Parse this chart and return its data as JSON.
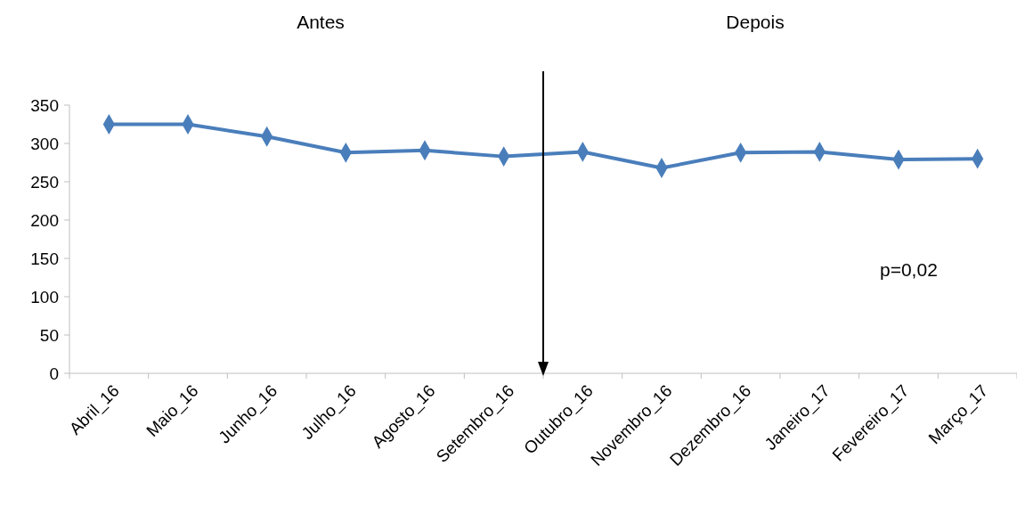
{
  "chart_data": {
    "type": "line",
    "categories": [
      "Abril_16",
      "Maio_16",
      "Junho_16",
      "Julho_16",
      "Agosto_16",
      "Setembro_16",
      "Outubro_16",
      "Novembro_16",
      "Dezembro_16",
      "Janeiro_17",
      "Fevereiro_17",
      "Março_17"
    ],
    "series": [
      {
        "color": "#4a7ebb",
        "values": [
          325,
          325,
          309,
          288,
          291,
          283,
          289,
          268,
          288,
          289,
          279,
          280
        ]
      }
    ],
    "ylim": [
      0,
      350
    ],
    "yticks": [
      0,
      50,
      100,
      150,
      200,
      250,
      300,
      350
    ],
    "grid": false,
    "marker": "diamond",
    "line_style": "solid",
    "annotations": [
      "Antes",
      "Depois",
      "p=0,02"
    ]
  }
}
